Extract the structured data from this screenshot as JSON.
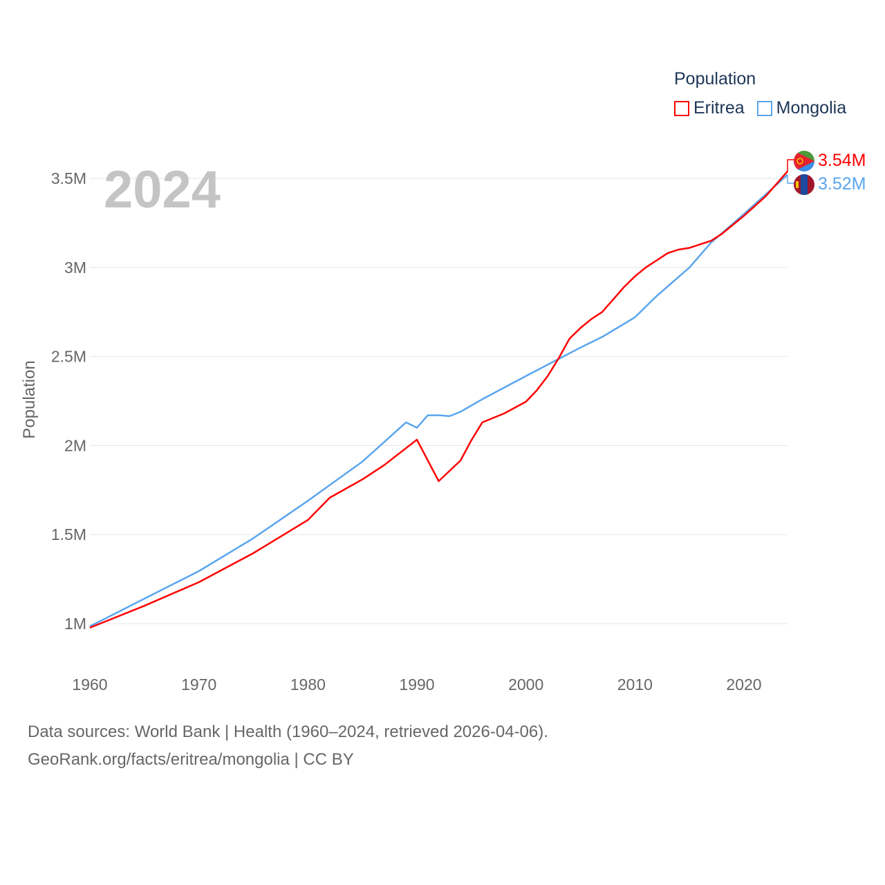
{
  "chart_data": {
    "type": "line",
    "year_label": "2024",
    "ylabel": "Population",
    "xlabel": "",
    "xlim": [
      1960,
      2024
    ],
    "ylim": [
      0.85,
      3.7
    ],
    "x_ticks": [
      "1960",
      "1970",
      "1980",
      "1990",
      "2000",
      "2010",
      "2020"
    ],
    "y_ticks": [
      {
        "v": 1,
        "label": "1M"
      },
      {
        "v": 1.5,
        "label": "1.5M"
      },
      {
        "v": 2,
        "label": "2M"
      },
      {
        "v": 2.5,
        "label": "2.5M"
      },
      {
        "v": 3,
        "label": "3M"
      },
      {
        "v": 3.5,
        "label": "3.5M"
      }
    ],
    "grid": true,
    "legend": {
      "title": "Population",
      "placement": "top-right"
    },
    "series": [
      {
        "name": "Eritrea",
        "color": "#ff0000",
        "end_label": "3.54M",
        "flag": "eritrea-flag",
        "x": [
          1960,
          1965,
          1970,
          1975,
          1980,
          1982,
          1985,
          1987,
          1990,
          1992,
          1994,
          1995,
          1996,
          1998,
          2000,
          2001,
          2002,
          2003,
          2004,
          2005,
          2006,
          2007,
          2008,
          2009,
          2010,
          2011,
          2012,
          2013,
          2014,
          2015,
          2016,
          2017,
          2018,
          2019,
          2020,
          2022,
          2024
        ],
        "y": [
          0.977,
          1.1,
          1.233,
          1.396,
          1.582,
          1.707,
          1.81,
          1.89,
          2.033,
          1.8,
          1.916,
          2.03,
          2.13,
          2.18,
          2.246,
          2.31,
          2.39,
          2.49,
          2.6,
          2.66,
          2.71,
          2.75,
          2.82,
          2.89,
          2.95,
          3.0,
          3.04,
          3.08,
          3.1,
          3.11,
          3.13,
          3.15,
          3.19,
          3.24,
          3.29,
          3.4,
          3.54
        ]
      },
      {
        "name": "Mongolia",
        "color": "#5aa5ee",
        "end_label": "3.52M",
        "flag": "mongolia-flag",
        "x": [
          1960,
          1965,
          1970,
          1975,
          1980,
          1985,
          1988,
          1989,
          1990,
          1991,
          1992,
          1993,
          1994,
          1996,
          2000,
          2005,
          2007,
          2010,
          2012,
          2015,
          2017,
          2020,
          2022,
          2024
        ],
        "y": [
          0.985,
          1.14,
          1.295,
          1.48,
          1.69,
          1.91,
          2.075,
          2.13,
          2.1,
          2.17,
          2.17,
          2.165,
          2.19,
          2.26,
          2.39,
          2.55,
          2.61,
          2.72,
          2.84,
          3.0,
          3.14,
          3.3,
          3.41,
          3.52
        ]
      }
    ]
  },
  "footer": {
    "line1": "Data sources: World Bank | Health (1960–2024, retrieved 2026-04-06).",
    "line2": "GeoRank.org/facts/eritrea/mongolia | CC BY"
  }
}
